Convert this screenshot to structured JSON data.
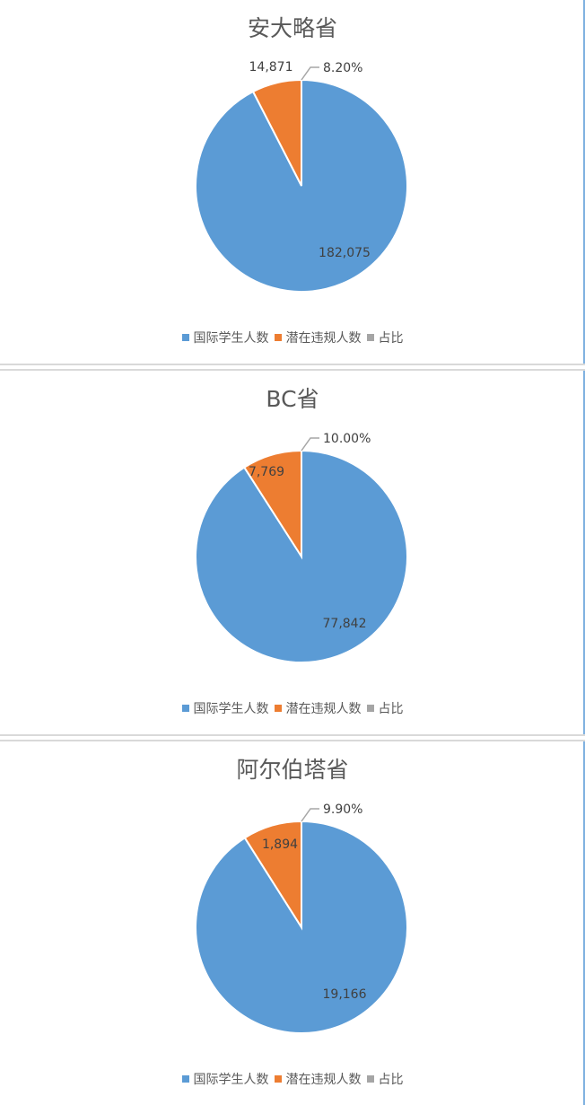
{
  "chart_data": [
    {
      "type": "pie",
      "title": "安大略省",
      "categories": [
        "国际学生人数",
        "潜在违规人数",
        "占比"
      ],
      "values": [
        182075,
        14871,
        0.082
      ],
      "data_labels": [
        "182,075",
        "14,871",
        "8.20%"
      ]
    },
    {
      "type": "pie",
      "title": "BC省",
      "categories": [
        "国际学生人数",
        "潜在违规人数",
        "占比"
      ],
      "values": [
        77842,
        7769,
        0.1
      ],
      "data_labels": [
        "77,842",
        "7,769",
        "10.00%"
      ]
    },
    {
      "type": "pie",
      "title": "阿尔伯塔省",
      "categories": [
        "国际学生人数",
        "潜在违规人数",
        "占比"
      ],
      "values": [
        19166,
        1894,
        0.099
      ],
      "data_labels": [
        "19,166",
        "1,894",
        "9.90%"
      ]
    }
  ],
  "colors": [
    "#5b9bd5",
    "#ed7d31",
    "#a5a5a5"
  ],
  "legend_position": "bottom"
}
